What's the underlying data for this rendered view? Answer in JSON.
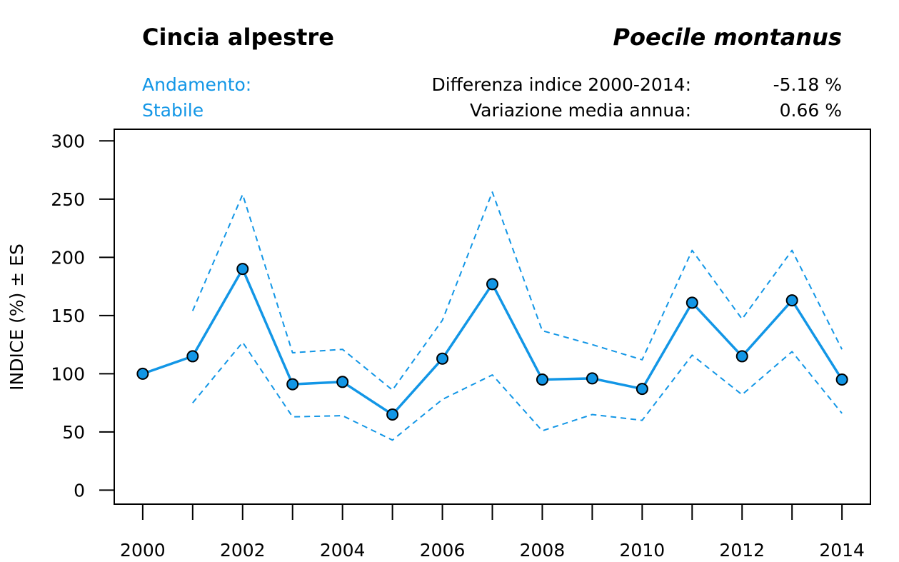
{
  "header": {
    "common_name": "Cincia alpestre",
    "scientific_name": "Poecile montanus",
    "trend_label": "Andamento:",
    "trend_value": "Stabile",
    "diff_label": "Differenza indice 2000-2014:",
    "diff_value": "-5.18 %",
    "annual_label": "Variazione media annua:",
    "annual_value": "0.66 %"
  },
  "colors": {
    "accent": "#1296e6",
    "marker_fill": "#1296e6",
    "marker_stroke": "#000000",
    "axis": "#000000"
  },
  "chart_data": {
    "type": "line",
    "title": "",
    "xlabel": "",
    "ylabel": "INDICE (%) ± ES",
    "x": [
      2000,
      2001,
      2002,
      2003,
      2004,
      2005,
      2006,
      2007,
      2008,
      2009,
      2010,
      2011,
      2012,
      2013,
      2014
    ],
    "xlim": [
      1999.43,
      2014.57
    ],
    "ylim": [
      -12,
      310
    ],
    "x_tick_labels": [
      "2000",
      "2002",
      "2004",
      "2006",
      "2008",
      "2010",
      "2012",
      "2014"
    ],
    "y_ticks": [
      0,
      50,
      100,
      150,
      200,
      250,
      300
    ],
    "y_tick_labels": [
      "0",
      "50",
      "100",
      "150",
      "200",
      "250",
      "300"
    ],
    "grid": false,
    "series": [
      {
        "name": "Indice",
        "style": "solid-markers",
        "values": [
          100,
          115,
          190,
          91,
          93,
          65,
          113,
          177,
          95,
          96,
          87,
          161,
          115,
          163,
          95
        ]
      },
      {
        "name": "Indice + ES",
        "style": "dashed",
        "values": [
          null,
          154,
          254,
          118,
          121,
          86,
          146,
          256,
          137,
          125,
          112,
          206,
          147,
          206,
          121
        ]
      },
      {
        "name": "Indice - ES",
        "style": "dashed",
        "values": [
          null,
          75,
          127,
          63,
          64,
          43,
          78,
          99,
          51,
          65,
          60,
          116,
          82,
          119,
          66
        ]
      }
    ]
  }
}
